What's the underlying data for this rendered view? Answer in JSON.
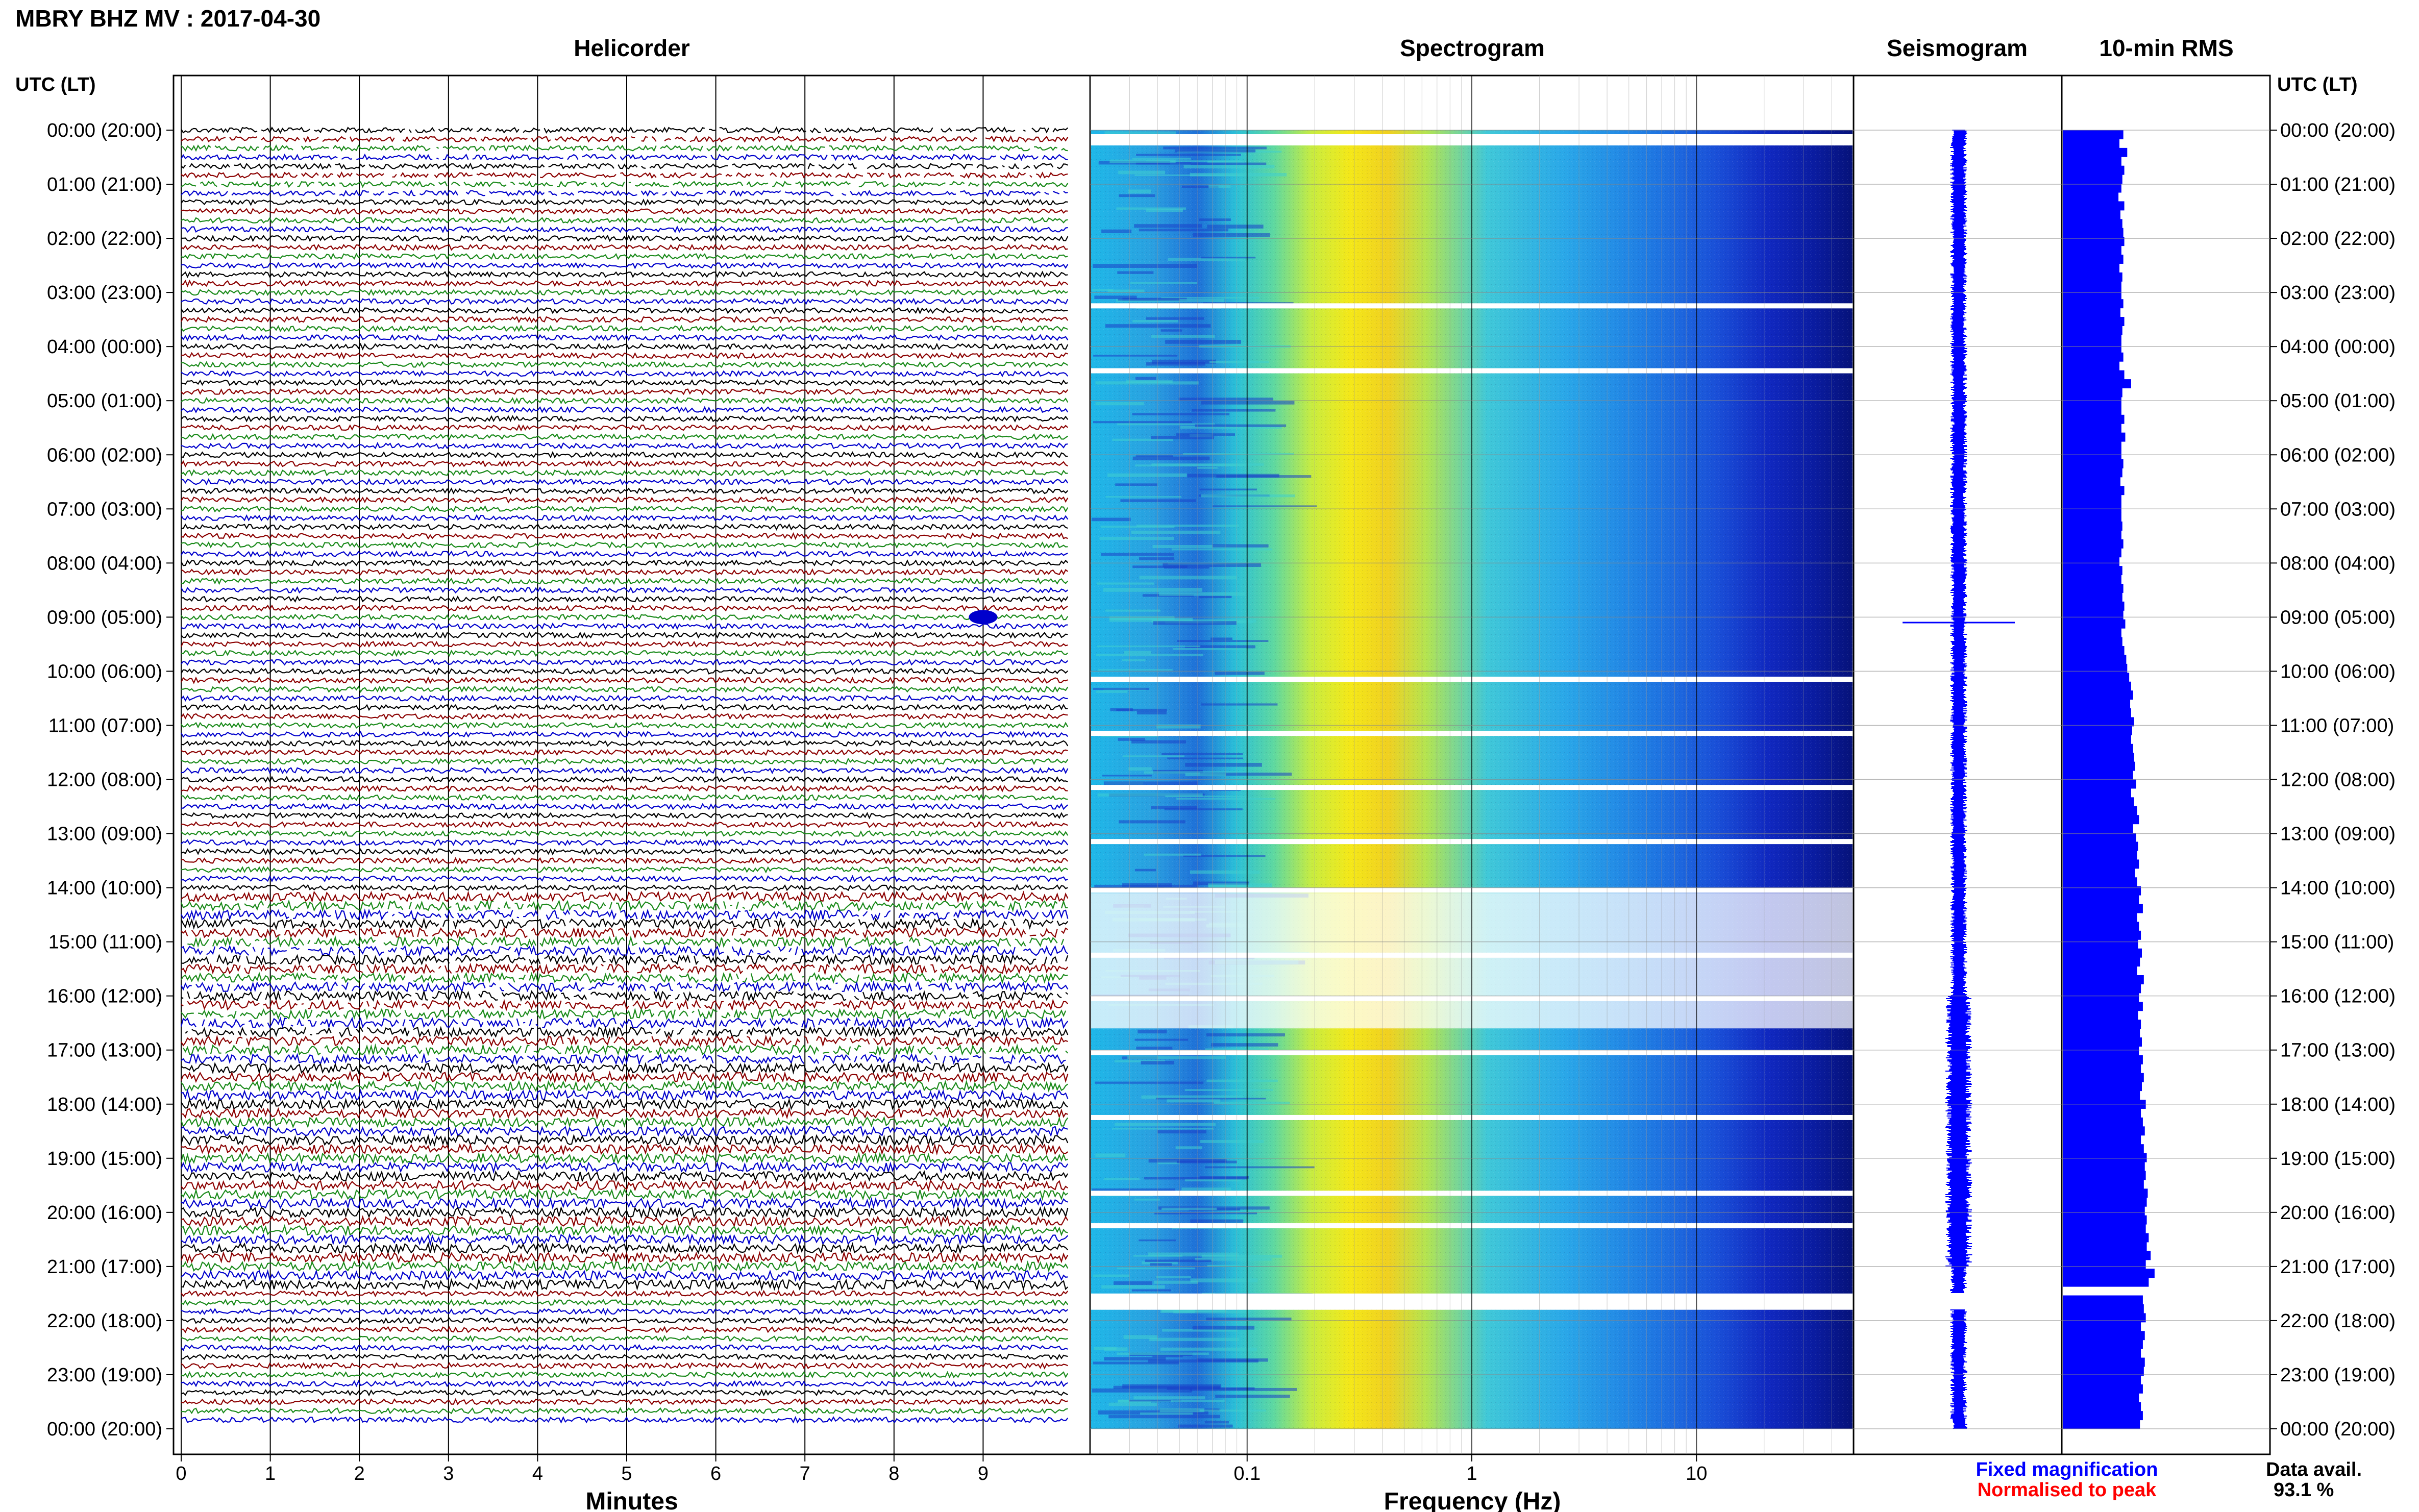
{
  "header": {
    "title": "MBRY BHZ MV : 2017-04-30",
    "utc_label_left": "UTC (LT)",
    "utc_label_right": "UTC (LT)"
  },
  "panels": {
    "helicorder": {
      "title": "Helicorder",
      "xlabel": "Minutes"
    },
    "spectrogram": {
      "title": "Spectrogram",
      "xlabel": "Frequency (Hz)"
    },
    "seismogram": {
      "title": "Seismogram"
    },
    "rms": {
      "title": "10-min RMS"
    }
  },
  "legend": {
    "fixed": "Fixed magnification",
    "normalised": "Normalised to peak",
    "data_avail_label": "Data avail.",
    "data_avail_value": "93.1 %"
  },
  "colors": {
    "trace_black": "#000000",
    "trace_red": "#8b0000",
    "trace_green": "#1a8a1a",
    "trace_blue": "#0000cc",
    "rms_blue": "#0000ff",
    "seis_blue": "#0000ff",
    "fixed_text": "#0000ff",
    "normalised_text": "#ff0000"
  },
  "chart_data": [
    {
      "type": "line",
      "title": "Helicorder",
      "xlabel": "Minutes",
      "xlim": [
        0,
        10
      ],
      "xticks": [
        "0",
        "1",
        "2",
        "3",
        "4",
        "5",
        "6",
        "7",
        "8",
        "9"
      ],
      "row_labels": [
        "00:00 (20:00)",
        "01:00 (21:00)",
        "02:00 (22:00)",
        "03:00 (23:00)",
        "04:00 (00:00)",
        "05:00 (01:00)",
        "06:00 (02:00)",
        "07:00 (03:00)",
        "08:00 (04:00)",
        "09:00 (05:00)",
        "10:00 (06:00)",
        "11:00 (07:00)",
        "12:00 (08:00)",
        "13:00 (09:00)",
        "14:00 (10:00)",
        "15:00 (11:00)",
        "16:00 (12:00)",
        "17:00 (13:00)",
        "18:00 (14:00)",
        "19:00 (15:00)",
        "20:00 (16:00)",
        "21:00 (17:00)",
        "22:00 (18:00)",
        "23:00 (19:00)",
        "00:00 (20:00)"
      ],
      "rows_per_hour": 6,
      "trace_colors_cycle": [
        "black",
        "red",
        "green",
        "blue"
      ]
    },
    {
      "type": "heatmap",
      "title": "Spectrogram",
      "xlabel": "Frequency (Hz)",
      "xscale": "log",
      "xlim": [
        0.02,
        50
      ],
      "xticks": [
        "0.1",
        "1",
        "10"
      ],
      "peak_band_hz": [
        0.2,
        0.5
      ],
      "gap_hours": [
        3.2,
        4.4,
        10.1,
        11.1,
        12.1,
        13.1,
        14.0,
        15.2,
        16.0,
        17.0,
        18.2,
        19.6,
        20.2,
        21.5
      ]
    },
    {
      "type": "line",
      "title": "Seismogram",
      "gap_hours": [
        21.5,
        21.8
      ],
      "spike_hour": 9.1
    },
    {
      "type": "bar",
      "title": "10-min RMS",
      "orientation": "horizontal",
      "bins_per_hour": 6,
      "gap_hours": [
        21.5,
        21.6
      ],
      "relative_values": [
        0.62,
        0.58,
        0.66,
        0.6,
        0.63,
        0.61,
        0.6,
        0.57,
        0.63,
        0.59,
        0.61,
        0.62,
        0.63,
        0.6,
        0.62,
        0.58,
        0.61,
        0.6,
        0.6,
        0.62,
        0.59,
        0.63,
        0.61,
        0.6,
        0.6,
        0.62,
        0.58,
        0.63,
        0.7,
        0.61,
        0.6,
        0.6,
        0.63,
        0.6,
        0.64,
        0.6,
        0.6,
        0.62,
        0.61,
        0.59,
        0.63,
        0.6,
        0.6,
        0.6,
        0.61,
        0.6,
        0.62,
        0.6,
        0.58,
        0.61,
        0.6,
        0.62,
        0.61,
        0.63,
        0.62,
        0.64,
        0.6,
        0.61,
        0.63,
        0.65,
        0.66,
        0.68,
        0.7,
        0.72,
        0.69,
        0.7,
        0.73,
        0.71,
        0.7,
        0.72,
        0.73,
        0.74,
        0.72,
        0.75,
        0.7,
        0.73,
        0.76,
        0.78,
        0.72,
        0.75,
        0.77,
        0.76,
        0.78,
        0.74,
        0.76,
        0.8,
        0.78,
        0.82,
        0.76,
        0.78,
        0.8,
        0.77,
        0.81,
        0.79,
        0.76,
        0.83,
        0.8,
        0.78,
        0.82,
        0.77,
        0.8,
        0.79,
        0.81,
        0.78,
        0.82,
        0.8,
        0.83,
        0.81,
        0.79,
        0.85,
        0.8,
        0.82,
        0.84,
        0.8,
        0.83,
        0.86,
        0.84,
        0.85,
        0.83,
        0.87,
        0.86,
        0.84,
        0.86,
        0.85,
        0.88,
        0.86,
        0.9,
        0.85,
        0.94,
        0.88,
        0.0,
        0.82,
        0.83,
        0.85,
        0.8,
        0.84,
        0.82,
        0.8,
        0.84,
        0.83,
        0.8,
        0.82,
        0.78,
        0.8,
        0.82,
        0.79
      ]
    }
  ]
}
